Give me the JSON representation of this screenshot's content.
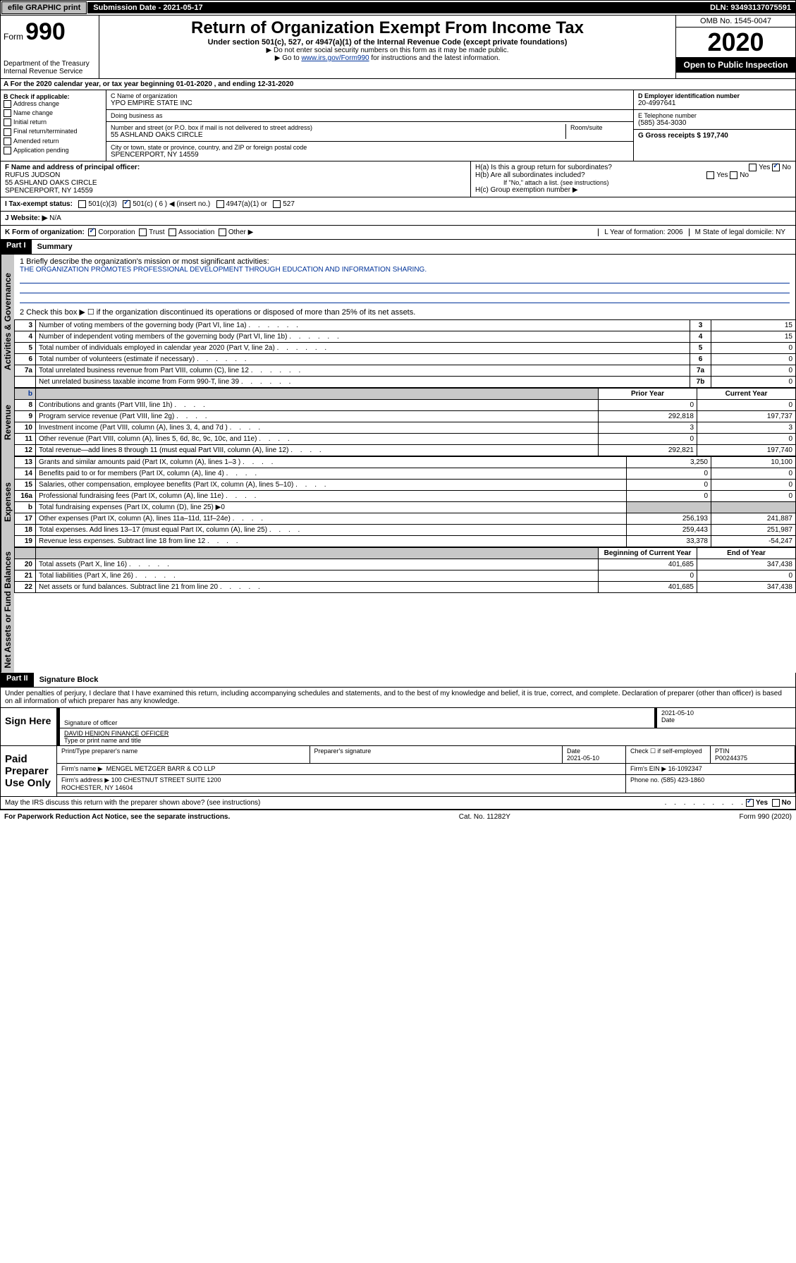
{
  "topbar": {
    "efile": "efile GRAPHIC print",
    "sub_label": "Submission Date - 2021-05-17",
    "dln": "DLN: 93493137075591"
  },
  "header": {
    "form_word": "Form",
    "form_no": "990",
    "dept": "Department of the Treasury\nInternal Revenue Service",
    "title": "Return of Organization Exempt From Income Tax",
    "sub1": "Under section 501(c), 527, or 4947(a)(1) of the Internal Revenue Code (except private foundations)",
    "sub2": "▶ Do not enter social security numbers on this form as it may be made public.",
    "sub3_pre": "▶ Go to ",
    "sub3_link": "www.irs.gov/Form990",
    "sub3_post": " for instructions and the latest information.",
    "omb": "OMB No. 1545-0047",
    "year": "2020",
    "open": "Open to Public Inspection"
  },
  "row_a": "A For the 2020 calendar year, or tax year beginning 01-01-2020   , and ending 12-31-2020",
  "box_b": {
    "title": "B Check if applicable:",
    "items": [
      "Address change",
      "Name change",
      "Initial return",
      "Final return/terminated",
      "Amended return",
      "Application pending"
    ]
  },
  "box_c": {
    "lbl": "C Name of organization",
    "val": "YPO EMPIRE STATE INC",
    "dba_lbl": "Doing business as",
    "dba_val": ""
  },
  "box_addr": {
    "lbl": "Number and street (or P.O. box if mail is not delivered to street address)",
    "room": "Room/suite",
    "val": "55 ASHLAND OAKS CIRCLE"
  },
  "box_city": {
    "lbl": "City or town, state or province, country, and ZIP or foreign postal code",
    "val": "SPENCERPORT, NY  14559"
  },
  "box_d": {
    "lbl": "D Employer identification number",
    "val": "20-4997641"
  },
  "box_e": {
    "lbl": "E Telephone number",
    "val": "(585) 354-3030"
  },
  "box_g": {
    "lbl": "G Gross receipts $ 197,740"
  },
  "box_f": {
    "lbl": "F  Name and address of principal officer:",
    "name": "RUFUS JUDSON",
    "addr1": "55 ASHLAND OAKS CIRCLE",
    "addr2": "SPENCERPORT, NY  14559"
  },
  "box_h": {
    "ha": "H(a)  Is this a group return for subordinates?",
    "hb": "H(b)  Are all subordinates included?",
    "hb_note": "If \"No,\" attach a list. (see instructions)",
    "hc": "H(c)  Group exemption number ▶",
    "yes": "Yes",
    "no": "No"
  },
  "row_i": {
    "lbl": "I  Tax-exempt status:",
    "c501c3": "501(c)(3)",
    "c501c": "501(c) ( 6 ) ◀ (insert no.)",
    "c4947": "4947(a)(1) or",
    "c527": "527"
  },
  "row_j": {
    "lbl": "J  Website: ▶",
    "val": "N/A"
  },
  "row_k": {
    "lbl": "K Form of organization:",
    "corp": "Corporation",
    "trust": "Trust",
    "assoc": "Association",
    "other": "Other ▶"
  },
  "row_l": {
    "lbl": "L Year of formation: 2006"
  },
  "row_m": {
    "lbl": "M State of legal domicile: NY"
  },
  "parts": {
    "p1": "Part I",
    "p1t": "Summary",
    "p2": "Part II",
    "p2t": "Signature Block"
  },
  "tabs": {
    "gov": "Activities & Governance",
    "rev": "Revenue",
    "exp": "Expenses",
    "net": "Net Assets or Fund Balances"
  },
  "summary": {
    "l1_lbl": "1  Briefly describe the organization's mission or most significant activities:",
    "l1_val": "THE ORGANIZATION PROMOTES PROFESSIONAL DEVELOPMENT THROUGH EDUCATION AND INFORMATION SHARING.",
    "l2": "2   Check this box ▶ ☐  if the organization discontinued its operations or disposed of more than 25% of its net assets.",
    "rows_single": [
      {
        "n": "3",
        "d": "Number of voting members of the governing body (Part VI, line 1a)",
        "k": "3",
        "v": "15"
      },
      {
        "n": "4",
        "d": "Number of independent voting members of the governing body (Part VI, line 1b)",
        "k": "4",
        "v": "15"
      },
      {
        "n": "5",
        "d": "Total number of individuals employed in calendar year 2020 (Part V, line 2a)",
        "k": "5",
        "v": "0"
      },
      {
        "n": "6",
        "d": "Total number of volunteers (estimate if necessary)",
        "k": "6",
        "v": "0"
      },
      {
        "n": "7a",
        "d": "Total unrelated business revenue from Part VIII, column (C), line 12",
        "k": "7a",
        "v": "0"
      },
      {
        "n": "",
        "d": "Net unrelated business taxable income from Form 990-T, line 39",
        "k": "7b",
        "v": "0"
      }
    ],
    "col_hdr_prior": "Prior Year",
    "col_hdr_curr": "Current Year",
    "rev_rows": [
      {
        "n": "8",
        "d": "Contributions and grants (Part VIII, line 1h)",
        "p": "0",
        "c": "0"
      },
      {
        "n": "9",
        "d": "Program service revenue (Part VIII, line 2g)",
        "p": "292,818",
        "c": "197,737"
      },
      {
        "n": "10",
        "d": "Investment income (Part VIII, column (A), lines 3, 4, and 7d )",
        "p": "3",
        "c": "3"
      },
      {
        "n": "11",
        "d": "Other revenue (Part VIII, column (A), lines 5, 6d, 8c, 9c, 10c, and 11e)",
        "p": "0",
        "c": "0"
      },
      {
        "n": "12",
        "d": "Total revenue—add lines 8 through 11 (must equal Part VIII, column (A), line 12)",
        "p": "292,821",
        "c": "197,740"
      }
    ],
    "exp_rows": [
      {
        "n": "13",
        "d": "Grants and similar amounts paid (Part IX, column (A), lines 1–3 )",
        "p": "3,250",
        "c": "10,100"
      },
      {
        "n": "14",
        "d": "Benefits paid to or for members (Part IX, column (A), line 4)",
        "p": "0",
        "c": "0"
      },
      {
        "n": "15",
        "d": "Salaries, other compensation, employee benefits (Part IX, column (A), lines 5–10)",
        "p": "0",
        "c": "0"
      },
      {
        "n": "16a",
        "d": "Professional fundraising fees (Part IX, column (A), line 11e)",
        "p": "0",
        "c": "0"
      },
      {
        "n": "b",
        "d": "Total fundraising expenses (Part IX, column (D), line 25) ▶0",
        "p": "",
        "c": "",
        "shade": true
      },
      {
        "n": "17",
        "d": "Other expenses (Part IX, column (A), lines 11a–11d, 11f–24e)",
        "p": "256,193",
        "c": "241,887"
      },
      {
        "n": "18",
        "d": "Total expenses. Add lines 13–17 (must equal Part IX, column (A), line 25)",
        "p": "259,443",
        "c": "251,987"
      },
      {
        "n": "19",
        "d": "Revenue less expenses. Subtract line 18 from line 12",
        "p": "33,378",
        "c": "-54,247"
      }
    ],
    "col_hdr_beg": "Beginning of Current Year",
    "col_hdr_end": "End of Year",
    "net_rows": [
      {
        "n": "20",
        "d": "Total assets (Part X, line 16)",
        "p": "401,685",
        "c": "347,438"
      },
      {
        "n": "21",
        "d": "Total liabilities (Part X, line 26)",
        "p": "0",
        "c": "0"
      },
      {
        "n": "22",
        "d": "Net assets or fund balances. Subtract line 21 from line 20",
        "p": "401,685",
        "c": "347,438"
      }
    ]
  },
  "perjury": "Under penalties of perjury, I declare that I have examined this return, including accompanying schedules and statements, and to the best of my knowledge and belief, it is true, correct, and complete. Declaration of preparer (other than officer) is based on all information of which preparer has any knowledge.",
  "sign": {
    "left": "Sign Here",
    "sig_lbl": "Signature of officer",
    "date": "2021-05-10",
    "date_lbl": "Date",
    "name": "DAVID HENION FINANCE OFFICER",
    "name_lbl": "Type or print name and title"
  },
  "paid": {
    "left": "Paid Preparer Use Only",
    "h1": "Print/Type preparer's name",
    "h2": "Preparer's signature",
    "h3": "Date",
    "h3v": "2021-05-10",
    "h4": "Check ☐ if self-employed",
    "h5": "PTIN",
    "h5v": "P00244375",
    "firm_lbl": "Firm's name      ▶",
    "firm": "MENGEL METZGER BARR & CO LLP",
    "ein_lbl": "Firm's EIN ▶",
    "ein": "16-1092347",
    "addr_lbl": "Firm's address ▶",
    "addr": "100 CHESTNUT STREET SUITE 1200\nROCHESTER, NY  14604",
    "phone_lbl": "Phone no.",
    "phone": "(585) 423-1860"
  },
  "discuss": {
    "q": "May the IRS discuss this return with the preparer shown above? (see instructions)",
    "yes": "Yes",
    "no": "No"
  },
  "footer": {
    "l": "For Paperwork Reduction Act Notice, see the separate instructions.",
    "c": "Cat. No. 11282Y",
    "r": "Form 990 (2020)"
  }
}
